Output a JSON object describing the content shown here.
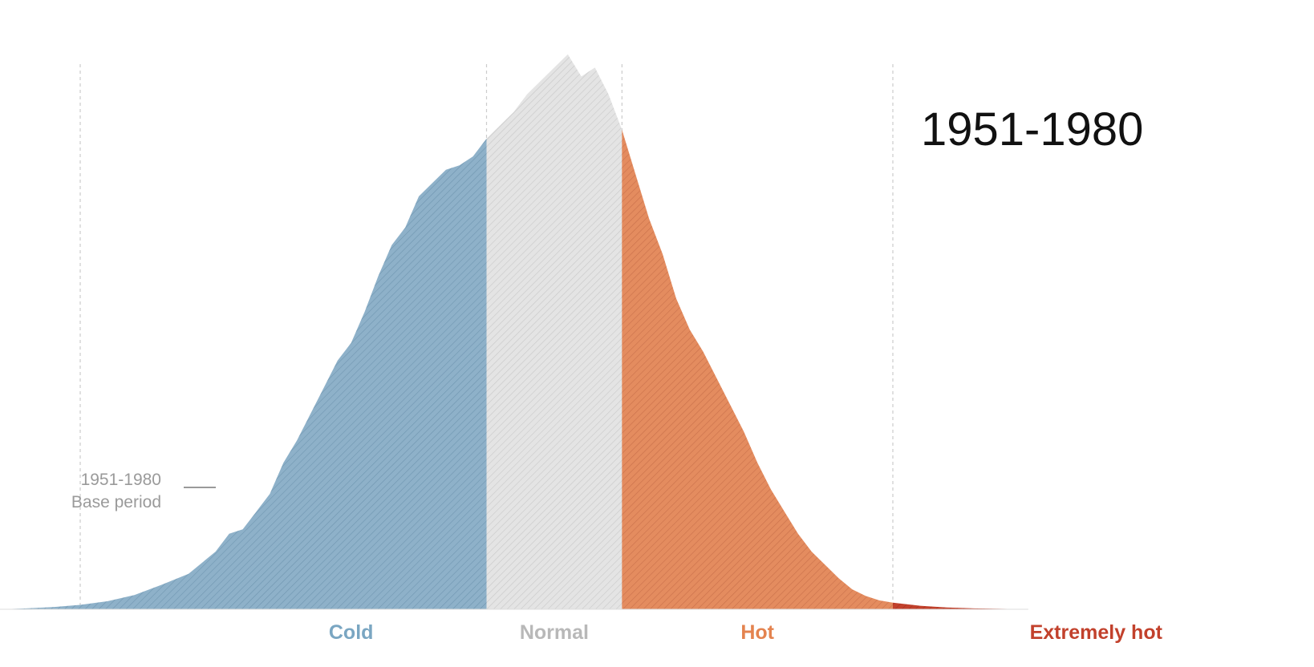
{
  "chart_data": {
    "type": "area",
    "title": "1951-1980",
    "annotation": {
      "line1": "1951-1980",
      "line2": "Base period"
    },
    "x_range": [
      -3.6,
      6.0
    ],
    "category_boundaries": [
      -3,
      0.5,
      2.0
    ],
    "divider_lines": [
      -3.0,
      0.0,
      1.0,
      3.0
    ],
    "categories": [
      {
        "name": "Cold",
        "color": "#8eb1c9",
        "hatch": "#6f96b0",
        "label_color": "#7aa6c2",
        "from": -3.6,
        "to": 0.0
      },
      {
        "name": "Normal",
        "color": "#e4e4e4",
        "hatch": "#c8c8c8",
        "label_color": "#b8b8b8",
        "from": 0.0,
        "to": 1.0
      },
      {
        "name": "Hot",
        "color": "#e48c5f",
        "hatch": "#c9704a",
        "label_color": "#e4834f",
        "from": 1.0,
        "to": 3.0
      },
      {
        "name": "Extremely hot",
        "color": "#c2412c",
        "hatch": "#a6331f",
        "label_color": "#c2412c",
        "from": 3.0,
        "to": 4.0
      }
    ],
    "label_positions": [
      -1.0,
      0.5,
      2.0,
      4.5
    ],
    "series": [
      {
        "name": "1951-1980",
        "x": [
          -3.6,
          -3.4,
          -3.2,
          -3.0,
          -2.8,
          -2.6,
          -2.4,
          -2.2,
          -2.0,
          -1.9,
          -1.8,
          -1.7,
          -1.6,
          -1.5,
          -1.4,
          -1.3,
          -1.2,
          -1.1,
          -1.0,
          -0.9,
          -0.8,
          -0.7,
          -0.6,
          -0.5,
          -0.4,
          -0.3,
          -0.2,
          -0.1,
          0.0,
          0.1,
          0.2,
          0.3,
          0.4,
          0.5,
          0.6,
          0.7,
          0.8,
          0.9,
          1.0,
          1.1,
          1.2,
          1.3,
          1.4,
          1.5,
          1.6,
          1.7,
          1.8,
          1.9,
          2.0,
          2.1,
          2.2,
          2.3,
          2.4,
          2.5,
          2.6,
          2.7,
          2.8,
          2.9,
          3.0,
          3.2,
          3.4,
          3.6,
          3.8,
          4.0
        ],
        "density": [
          0.0,
          0.002,
          0.005,
          0.01,
          0.018,
          0.032,
          0.055,
          0.08,
          0.13,
          0.17,
          0.18,
          0.22,
          0.26,
          0.33,
          0.38,
          0.44,
          0.5,
          0.56,
          0.6,
          0.67,
          0.75,
          0.82,
          0.86,
          0.93,
          0.96,
          0.99,
          1.0,
          1.02,
          1.06,
          1.09,
          1.12,
          1.16,
          1.19,
          1.22,
          1.25,
          1.2,
          1.22,
          1.16,
          1.08,
          0.98,
          0.88,
          0.8,
          0.7,
          0.63,
          0.58,
          0.52,
          0.46,
          0.4,
          0.33,
          0.27,
          0.22,
          0.17,
          0.13,
          0.1,
          0.07,
          0.045,
          0.03,
          0.02,
          0.015,
          0.008,
          0.004,
          0.002,
          0.001,
          0.0
        ],
        "ylim": [
          0,
          1.3
        ]
      }
    ]
  }
}
